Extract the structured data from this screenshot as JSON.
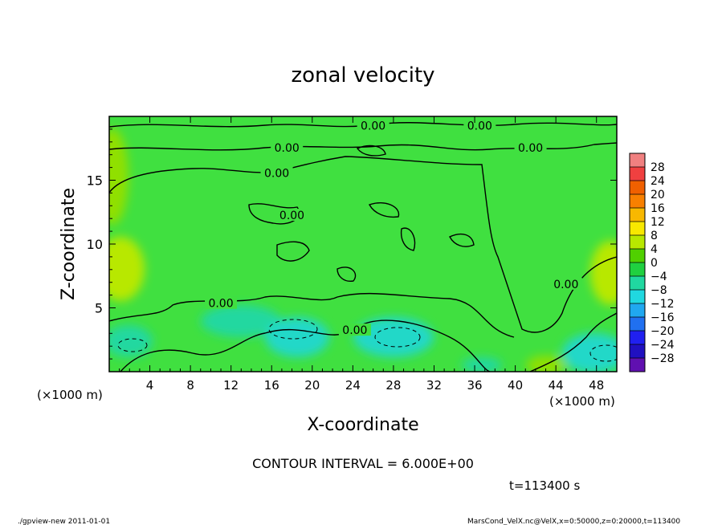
{
  "chart_data": {
    "type": "heatmap",
    "title": "zonal velocity",
    "xlabel": "X-coordinate",
    "ylabel": "Z-coordinate",
    "x_unit_left": "(×1000 m)",
    "x_unit_right": "(×1000 m)",
    "xlim": [
      0,
      50
    ],
    "ylim": [
      0,
      20
    ],
    "x_ticks": [
      4,
      8,
      12,
      16,
      20,
      24,
      28,
      32,
      36,
      40,
      44,
      48
    ],
    "y_ticks": [
      5,
      10,
      15
    ],
    "colorbar": {
      "labels": [
        "28",
        "24",
        "20",
        "16",
        "12",
        "8",
        "4",
        "0",
        "−4",
        "−8",
        "−12",
        "−16",
        "−20",
        "−24",
        "−28"
      ],
      "colors": [
        "#f08080",
        "#f04040",
        "#f06000",
        "#f88000",
        "#f8b800",
        "#f8e800",
        "#b8e800",
        "#50d000",
        "#20d040",
        "#20d8a0",
        "#20d8e0",
        "#20a8f0",
        "#2070f0",
        "#2020f0",
        "#2010c0",
        "#6010b0"
      ]
    },
    "contour_labels": [
      {
        "text": "0.00",
        "x": 26.0,
        "z": 19.2
      },
      {
        "text": "0.00",
        "x": 36.5,
        "z": 19.2
      },
      {
        "text": "0.00",
        "x": 17.5,
        "z": 17.5
      },
      {
        "text": "0.00",
        "x": 41.5,
        "z": 17.5
      },
      {
        "text": "0.00",
        "x": 16.5,
        "z": 15.5
      },
      {
        "text": "0.00",
        "x": 18.0,
        "z": 12.2
      },
      {
        "text": "0.00",
        "x": 11.0,
        "z": 5.3
      },
      {
        "text": "0.00",
        "x": 24.2,
        "z": 3.2
      },
      {
        "text": "0.00",
        "x": 45.0,
        "z": 6.8
      }
    ],
    "annotation": "CONTOUR INTERVAL = 6.000E+00",
    "time_label": "t=113400 s",
    "footer_left": "./gpview-new  2011-01-01",
    "footer_right": "MarsCond_VelX.nc@VelX,x=0:50000,z=0:20000,t=113400"
  }
}
